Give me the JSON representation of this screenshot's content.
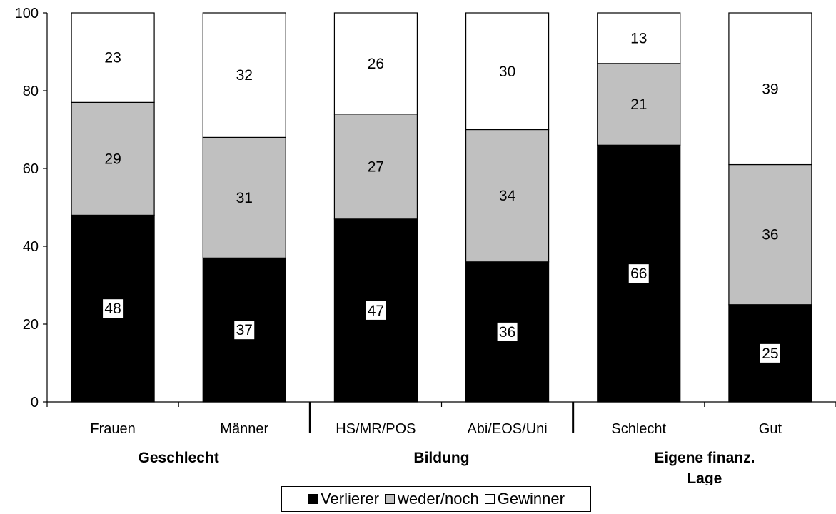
{
  "chart_data": {
    "type": "bar",
    "stacked": true,
    "categories": [
      "Frauen",
      "Männer",
      "HS/MR/POS",
      "Abi/EOS/Uni",
      "Schlecht",
      "Gut"
    ],
    "groups": [
      {
        "label": "Geschlecht",
        "categories": [
          "Frauen",
          "Männer"
        ]
      },
      {
        "label": "Bildung",
        "categories": [
          "HS/MR/POS",
          "Abi/EOS/Uni"
        ]
      },
      {
        "label": "Eigene finanz. Lage",
        "categories": [
          "Schlecht",
          "Gut"
        ]
      }
    ],
    "series": [
      {
        "name": "Verlierer",
        "color": "#000000",
        "values": [
          48,
          37,
          47,
          36,
          66,
          25
        ]
      },
      {
        "name": "weder/noch",
        "color": "#c0c0c0",
        "values": [
          29,
          31,
          27,
          34,
          21,
          36
        ]
      },
      {
        "name": "Gewinner",
        "color": "#ffffff",
        "values": [
          23,
          32,
          26,
          30,
          13,
          39
        ]
      }
    ],
    "ylim": [
      0,
      100
    ],
    "yticks": [
      0,
      20,
      40,
      60,
      80,
      100
    ],
    "legend_position": "bottom",
    "grid": false
  }
}
